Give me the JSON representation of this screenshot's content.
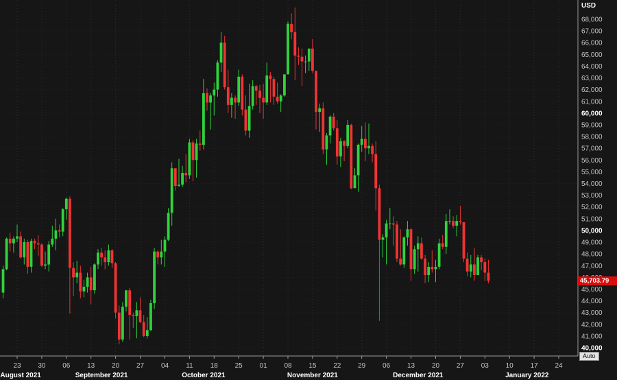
{
  "chart_data": {
    "type": "candlestick",
    "unit": "USD",
    "last_price": 45703.79,
    "last_price_label": "45,703.79",
    "auto_label": "Auto",
    "y_axis": {
      "min": 40000,
      "max": 68000,
      "step": 1000,
      "bold_step": 10000
    },
    "x_axis": {
      "ticks": [
        {
          "label": "23",
          "day": 4
        },
        {
          "label": "30",
          "day": 11
        },
        {
          "label": "06",
          "day": 18
        },
        {
          "label": "13",
          "day": 25
        },
        {
          "label": "20",
          "day": 32
        },
        {
          "label": "27",
          "day": 39
        },
        {
          "label": "04",
          "day": 46
        },
        {
          "label": "11",
          "day": 53
        },
        {
          "label": "18",
          "day": 60
        },
        {
          "label": "25",
          "day": 67
        },
        {
          "label": "01",
          "day": 74
        },
        {
          "label": "08",
          "day": 81
        },
        {
          "label": "15",
          "day": 88
        },
        {
          "label": "22",
          "day": 95
        },
        {
          "label": "29",
          "day": 102
        },
        {
          "label": "06",
          "day": 109
        },
        {
          "label": "13",
          "day": 116
        },
        {
          "label": "20",
          "day": 123
        },
        {
          "label": "27",
          "day": 130
        },
        {
          "label": "03",
          "day": 137
        },
        {
          "label": "10",
          "day": 144
        },
        {
          "label": "17",
          "day": 151
        },
        {
          "label": "24",
          "day": 158
        }
      ],
      "month_labels": [
        {
          "label": "August 2021",
          "day": 5
        },
        {
          "label": "September 2021",
          "day": 28
        },
        {
          "label": "October 2021",
          "day": 57
        },
        {
          "label": "November 2021",
          "day": 88
        },
        {
          "label": "December 2021",
          "day": 118
        },
        {
          "label": "January 2022",
          "day": 149
        }
      ]
    },
    "colors": {
      "background": "#161616",
      "grid_h": "#222222",
      "grid_v": "#2d2d2d",
      "axis": "#9a9a9a",
      "label": "#c4c4c4",
      "bold_label": "#ffffff",
      "up": "#2fd33b",
      "down": "#ef3434",
      "flag": "#dd0c0c"
    },
    "candles": [
      [
        44700,
        47000,
        44200,
        46700
      ],
      [
        46700,
        49400,
        46600,
        49300
      ],
      [
        49300,
        49800,
        48200,
        48900
      ],
      [
        48900,
        49500,
        48100,
        49300
      ],
      [
        49300,
        50500,
        49000,
        49500
      ],
      [
        49500,
        49900,
        47600,
        47700
      ],
      [
        47700,
        49300,
        47100,
        49000
      ],
      [
        49000,
        49200,
        46300,
        46900
      ],
      [
        46900,
        49300,
        46400,
        49100
      ],
      [
        49100,
        49300,
        48400,
        48900
      ],
      [
        48900,
        49600,
        47800,
        48800
      ],
      [
        48800,
        48900,
        46900,
        47000
      ],
      [
        47000,
        48200,
        46700,
        47100
      ],
      [
        47100,
        49100,
        46500,
        48800
      ],
      [
        48800,
        50400,
        48600,
        49300
      ],
      [
        49300,
        51000,
        48300,
        50000
      ],
      [
        50000,
        50500,
        49400,
        49900
      ],
      [
        49900,
        51900,
        49500,
        51800
      ],
      [
        51800,
        52800,
        50900,
        52700
      ],
      [
        52700,
        52900,
        42900,
        46800
      ],
      [
        46800,
        47300,
        44400,
        46000
      ],
      [
        46000,
        47400,
        45500,
        46400
      ],
      [
        46400,
        47000,
        44200,
        44800
      ],
      [
        44800,
        45800,
        44300,
        45200
      ],
      [
        45200,
        46400,
        44700,
        46000
      ],
      [
        46000,
        46900,
        43700,
        44900
      ],
      [
        44900,
        47200,
        44600,
        47100
      ],
      [
        47100,
        48400,
        46700,
        48100
      ],
      [
        48100,
        48500,
        47000,
        47700
      ],
      [
        47700,
        48300,
        46700,
        47300
      ],
      [
        47300,
        48800,
        47000,
        48300
      ],
      [
        48300,
        48400,
        46800,
        47200
      ],
      [
        47200,
        47300,
        42500,
        43000
      ],
      [
        43000,
        43600,
        40300,
        40700
      ],
      [
        40700,
        43900,
        40500,
        43500
      ],
      [
        43500,
        44900,
        43100,
        44900
      ],
      [
        44900,
        45100,
        40700,
        42800
      ],
      [
        42800,
        43000,
        41700,
        42700
      ],
      [
        42700,
        43900,
        40800,
        43200
      ],
      [
        43200,
        44300,
        42100,
        42200
      ],
      [
        42200,
        42800,
        40900,
        41000
      ],
      [
        41000,
        42600,
        40800,
        41500
      ],
      [
        41500,
        44100,
        41400,
        43800
      ],
      [
        43800,
        48500,
        43300,
        48200
      ],
      [
        48200,
        48300,
        47100,
        47700
      ],
      [
        47700,
        49200,
        47100,
        48200
      ],
      [
        48200,
        49500,
        46900,
        49200
      ],
      [
        49200,
        51900,
        49100,
        51500
      ],
      [
        51500,
        55800,
        50400,
        55300
      ],
      [
        55300,
        55300,
        53400,
        53800
      ],
      [
        53800,
        56100,
        53700,
        53900
      ],
      [
        53900,
        55500,
        53700,
        54900
      ],
      [
        54900,
        56500,
        54100,
        54700
      ],
      [
        54700,
        57800,
        54400,
        57500
      ],
      [
        57500,
        57700,
        54200,
        56000
      ],
      [
        56000,
        57800,
        54500,
        57400
      ],
      [
        57400,
        58500,
        56800,
        57300
      ],
      [
        57300,
        62900,
        56900,
        61700
      ],
      [
        61700,
        62100,
        60200,
        60900
      ],
      [
        60900,
        61700,
        58600,
        61500
      ],
      [
        61500,
        62600,
        59800,
        62000
      ],
      [
        62000,
        64500,
        61400,
        64300
      ],
      [
        64300,
        66900,
        63500,
        66000
      ],
      [
        66000,
        66600,
        62000,
        62200
      ],
      [
        62200,
        63700,
        60000,
        60700
      ],
      [
        60700,
        61700,
        59600,
        61300
      ],
      [
        61300,
        61500,
        59500,
        60900
      ],
      [
        60900,
        63700,
        60600,
        63100
      ],
      [
        63100,
        63300,
        59800,
        60300
      ],
      [
        60300,
        61500,
        58100,
        58500
      ],
      [
        58500,
        62500,
        57900,
        60600
      ],
      [
        60600,
        62800,
        60300,
        62300
      ],
      [
        62300,
        62400,
        60700,
        61900
      ],
      [
        61900,
        62400,
        60000,
        61300
      ],
      [
        61300,
        62500,
        59500,
        60900
      ],
      [
        60900,
        64300,
        60700,
        63200
      ],
      [
        63200,
        63500,
        60900,
        62900
      ],
      [
        62900,
        63100,
        60700,
        61400
      ],
      [
        61400,
        62600,
        60800,
        61000
      ],
      [
        61000,
        61600,
        60100,
        61500
      ],
      [
        61500,
        63300,
        61400,
        63300
      ],
      [
        63300,
        67800,
        63300,
        67600
      ],
      [
        67600,
        68500,
        66300,
        66900
      ],
      [
        66900,
        69000,
        62800,
        64900
      ],
      [
        64900,
        65600,
        64100,
        64800
      ],
      [
        64800,
        65500,
        62300,
        64400
      ],
      [
        64400,
        64900,
        63400,
        64400
      ],
      [
        64400,
        65500,
        63600,
        65500
      ],
      [
        65500,
        66300,
        63400,
        63600
      ],
      [
        63600,
        63600,
        58600,
        60100
      ],
      [
        60100,
        60800,
        58400,
        60400
      ],
      [
        60400,
        60900,
        56500,
        56900
      ],
      [
        56900,
        58300,
        55600,
        58100
      ],
      [
        58100,
        59800,
        57400,
        59700
      ],
      [
        59700,
        60000,
        58500,
        58700
      ],
      [
        58700,
        59400,
        55600,
        56300
      ],
      [
        56300,
        57900,
        55400,
        57600
      ],
      [
        57600,
        57700,
        55900,
        57200
      ],
      [
        57200,
        59400,
        57000,
        59000
      ],
      [
        59000,
        59100,
        53500,
        53600
      ],
      [
        53600,
        55300,
        53600,
        54700
      ],
      [
        54700,
        57400,
        53300,
        57300
      ],
      [
        57300,
        58900,
        56700,
        57800
      ],
      [
        57800,
        59200,
        55900,
        57000
      ],
      [
        57000,
        59100,
        56500,
        57200
      ],
      [
        57200,
        57400,
        55800,
        56500
      ],
      [
        56500,
        57600,
        51700,
        53600
      ],
      [
        53600,
        53900,
        42300,
        49200
      ],
      [
        49200,
        49700,
        47700,
        49400
      ],
      [
        49400,
        50900,
        47100,
        50600
      ],
      [
        50600,
        51900,
        50100,
        50600
      ],
      [
        50600,
        51200,
        48700,
        50500
      ],
      [
        50500,
        50800,
        47300,
        47600
      ],
      [
        47600,
        50100,
        47000,
        47100
      ],
      [
        47100,
        49500,
        46800,
        49400
      ],
      [
        49400,
        50800,
        48700,
        50100
      ],
      [
        50100,
        50200,
        45700,
        46700
      ],
      [
        46700,
        48700,
        46300,
        48400
      ],
      [
        48400,
        49500,
        46500,
        48900
      ],
      [
        48900,
        49400,
        47500,
        47600
      ],
      [
        47600,
        47900,
        45500,
        46200
      ],
      [
        46200,
        47300,
        45600,
        46900
      ],
      [
        46900,
        48300,
        46400,
        46700
      ],
      [
        46700,
        47500,
        45600,
        46900
      ],
      [
        46900,
        49300,
        46700,
        48900
      ],
      [
        48900,
        49600,
        48400,
        48600
      ],
      [
        48600,
        51400,
        48000,
        50800
      ],
      [
        50800,
        51800,
        50500,
        50800
      ],
      [
        50800,
        51200,
        50200,
        50400
      ],
      [
        50400,
        51300,
        49500,
        50800
      ],
      [
        50800,
        52100,
        50500,
        50700
      ],
      [
        50700,
        50700,
        47300,
        47600
      ],
      [
        47600,
        48100,
        46100,
        46500
      ],
      [
        46500,
        47900,
        46000,
        47100
      ],
      [
        47100,
        48500,
        45700,
        46200
      ],
      [
        46200,
        47900,
        46200,
        47700
      ],
      [
        47700,
        47900,
        46600,
        47300
      ],
      [
        47300,
        47600,
        45700,
        46400
      ],
      [
        46400,
        47500,
        45500,
        45703.79
      ]
    ]
  }
}
